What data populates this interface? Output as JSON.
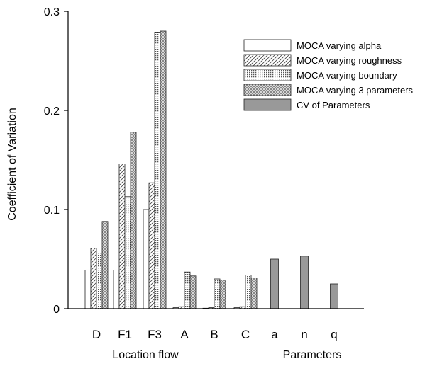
{
  "chart_data": {
    "type": "bar",
    "title": "",
    "xlabel_groups": [
      "Location flow",
      "Parameters"
    ],
    "ylabel": "Coefficient of Variation",
    "ylim": [
      0,
      0.3
    ],
    "yticks": [
      "0",
      "0.1",
      "0.2",
      "0.3"
    ],
    "ytick_values": [
      0,
      0.1,
      0.2,
      0.3
    ],
    "grid": false,
    "legend_position": "top-right",
    "categories": [
      "D",
      "F1",
      "F3",
      "A",
      "B",
      "C",
      "a",
      "n",
      "q"
    ],
    "series": [
      {
        "name": "MOCA varying alpha",
        "pattern": "none",
        "values": [
          0.039,
          0.039,
          0.1,
          0.001,
          0.0005,
          0.001,
          null,
          null,
          null
        ]
      },
      {
        "name": "MOCA varying roughness",
        "pattern": "hatch",
        "values": [
          0.061,
          0.146,
          0.127,
          0.002,
          0.001,
          0.002,
          null,
          null,
          null
        ]
      },
      {
        "name": "MOCA varying boundary",
        "pattern": "dots",
        "values": [
          0.056,
          0.113,
          0.279,
          0.037,
          0.03,
          0.034,
          null,
          null,
          null
        ]
      },
      {
        "name": "MOCA varying 3 parameters",
        "pattern": "cross",
        "values": [
          0.088,
          0.178,
          0.28,
          0.033,
          0.029,
          0.031,
          null,
          null,
          null
        ]
      },
      {
        "name": "CV of Parameters",
        "pattern": "solid",
        "color": "#999999",
        "values": [
          null,
          null,
          null,
          null,
          null,
          null,
          0.05,
          0.053,
          0.025
        ]
      }
    ]
  }
}
